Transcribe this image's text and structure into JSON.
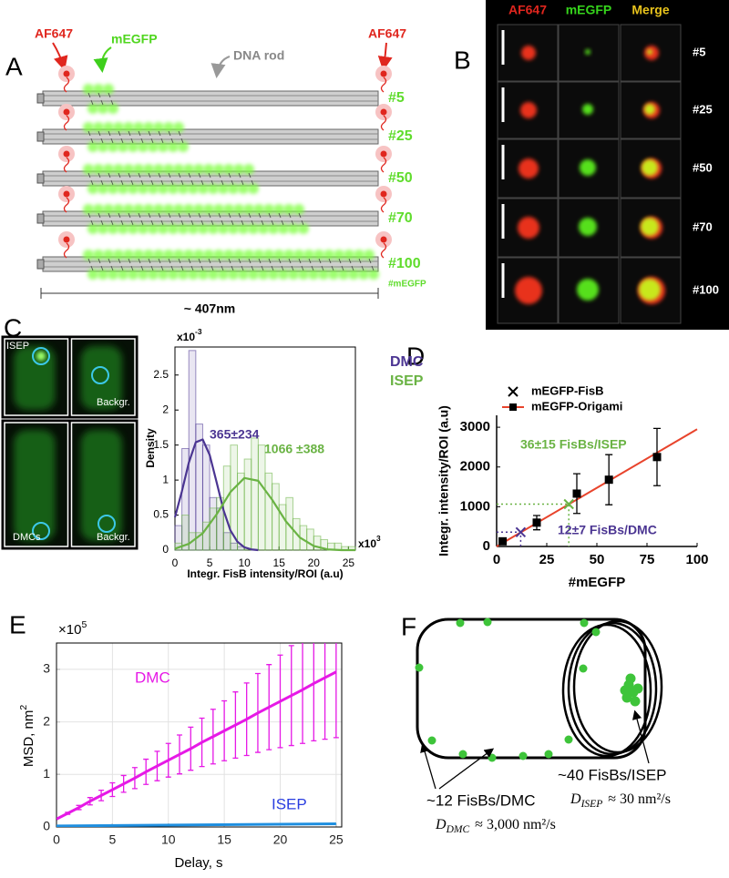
{
  "panel_labels": [
    "A",
    "B",
    "C",
    "D",
    "E",
    "F"
  ],
  "panel_a": {
    "af647_left": "AF647",
    "mEGFP": "mEGFP",
    "dna_rod": "DNA rod",
    "af647_right": "AF647",
    "rows": [
      "#5",
      "#25",
      "#50",
      "#70",
      "#100"
    ],
    "unit": "#mEGFP",
    "length": "~ 407nm"
  },
  "panel_b": {
    "columns": [
      "AF647",
      "mEGFP",
      "Merge"
    ],
    "rows": [
      "#5",
      "#25",
      "#50",
      "#70",
      "#100"
    ]
  },
  "panel_c_images": {
    "labels": [
      "ISEP",
      "Backgr.",
      "DMCs",
      "Backgr."
    ]
  },
  "panel_f": {
    "isep_count": "~40 FisBs/ISEP",
    "isep_d": {
      "symbol": "D",
      "subscript": "ISEP",
      "value": "≈ 30 nm²/s"
    },
    "dmc_count": "~12 FisBs/DMC",
    "dmc_d": {
      "symbol": "D",
      "subscript": "DMC",
      "value": "≈ 3,000 nm²/s"
    }
  },
  "chart_data": [
    {
      "type": "histogram",
      "y_label": "Density",
      "x_label": "Integr. FisB intensity/ROI (a.u)",
      "y_multiplier": {
        "base": "x10",
        "exponent": "-3"
      },
      "x_multiplier": {
        "base": "x10",
        "exponent": "3"
      },
      "xlim": [
        0,
        26
      ],
      "ylim": [
        0,
        2.9
      ],
      "xticks": [
        0,
        5,
        10,
        15,
        20,
        25
      ],
      "yticks": [
        0,
        0.5,
        1,
        1.5,
        2,
        2.5
      ],
      "series": [
        {
          "name": "DMC",
          "color": "#4b3592",
          "bins": [
            0,
            1,
            2,
            3,
            4,
            5,
            6,
            7,
            8,
            9,
            10
          ],
          "values": [
            0.35,
            1.45,
            2.85,
            1.8,
            1.5,
            0.75,
            0.6,
            0.25,
            0.1,
            0.05
          ]
        },
        {
          "name": "ISEP",
          "color": "#6ab344",
          "bins": [
            0,
            1,
            2,
            3,
            4,
            5,
            6,
            7,
            8,
            9,
            10,
            11,
            12,
            13,
            14,
            15,
            16,
            17,
            18,
            19,
            20,
            21,
            22,
            23,
            24,
            25,
            26
          ],
          "values": [
            0.1,
            0.5,
            0.25,
            0.25,
            0.4,
            0.6,
            0.75,
            1.2,
            1.5,
            1.1,
            1.3,
            1.6,
            1.5,
            1.1,
            0.95,
            0.65,
            0.75,
            0.45,
            0.35,
            0.3,
            0.2,
            0.15,
            0.1,
            0.1,
            0.05,
            0.05
          ]
        }
      ],
      "fits": [
        {
          "color": "#4b3592",
          "label": "365±234",
          "x": [
            0,
            1,
            2,
            3,
            4,
            5,
            6,
            7,
            8,
            9,
            10,
            11,
            12
          ],
          "values": [
            0.47,
            0.84,
            1.25,
            1.54,
            1.58,
            1.36,
            0.97,
            0.57,
            0.28,
            0.12,
            0.04,
            0.01,
            0
          ]
        },
        {
          "color": "#6ab344",
          "label": "1066 ±388",
          "x": [
            0,
            2,
            4,
            6,
            8,
            10,
            12,
            14,
            16,
            18,
            20,
            22,
            24,
            26
          ],
          "values": [
            0.02,
            0.09,
            0.24,
            0.51,
            0.83,
            1.03,
            0.99,
            0.72,
            0.41,
            0.18,
            0.06,
            0.01,
            0,
            0
          ]
        }
      ]
    },
    {
      "type": "scatter",
      "y_label": "Integr. intensity/ROI (a.u)",
      "x_label": "#mEGFP",
      "xlim": [
        0,
        100
      ],
      "ylim": [
        0,
        3300
      ],
      "xticks": [
        0,
        25,
        50,
        75,
        100
      ],
      "yticks": [
        0,
        1000,
        2000,
        3000
      ],
      "legend": "upper left",
      "series": [
        {
          "name": "mEGFP-FisB",
          "marker": "x",
          "color": "#000000",
          "colors": [
            "#6ab344",
            "#4b3592"
          ],
          "x": [
            36,
            12
          ],
          "values": [
            1066,
            360
          ]
        },
        {
          "name": "mEGFP-Origami",
          "marker": "square",
          "color": "#000000",
          "line_color": "#e8442c",
          "x": [
            3,
            20,
            40,
            56,
            80
          ],
          "values": [
            130,
            600,
            1330,
            1680,
            2250
          ],
          "errors": [
            40,
            180,
            500,
            630,
            720
          ]
        }
      ],
      "fit": {
        "color": "#e8442c",
        "x": [
          0,
          100
        ],
        "values": [
          0,
          2950
        ]
      },
      "annotations": [
        {
          "text": "36±15 FisBs/ISEP",
          "color": "#6ab344"
        },
        {
          "text": "12±7 FisBs/DMC",
          "color": "#4b3592"
        }
      ]
    },
    {
      "type": "line",
      "y_label": {
        "base": "MSD, nm",
        "exponent": "2"
      },
      "x_label": "Delay, s",
      "y_multiplier": {
        "base": "×10",
        "exponent": "5"
      },
      "xlim": [
        0,
        25.5
      ],
      "ylim": [
        0,
        3.5
      ],
      "xticks": [
        0,
        5,
        10,
        15,
        20,
        25
      ],
      "yticks": [
        0,
        1,
        2,
        3
      ],
      "grid": true,
      "series": [
        {
          "name": "DMC",
          "color": "#e619e6",
          "x": [
            0,
            1,
            2,
            3,
            4,
            5,
            6,
            7,
            8,
            9,
            10,
            11,
            12,
            13,
            14,
            15,
            16,
            17,
            18,
            19,
            20,
            21,
            22,
            23,
            24,
            25
          ],
          "values": [
            0.15,
            0.26,
            0.37,
            0.49,
            0.6,
            0.71,
            0.82,
            0.93,
            1.05,
            1.16,
            1.27,
            1.38,
            1.49,
            1.61,
            1.72,
            1.83,
            1.94,
            2.05,
            2.17,
            2.28,
            2.39,
            2.5,
            2.61,
            2.73,
            2.84,
            2.95
          ],
          "errors": [
            null,
            0.02,
            0.04,
            0.07,
            0.1,
            0.13,
            0.16,
            0.2,
            0.24,
            0.28,
            0.32,
            0.37,
            0.41,
            0.46,
            0.52,
            0.57,
            0.63,
            0.69,
            0.75,
            0.81,
            0.88,
            0.95,
            1.02,
            1.09,
            1.17,
            1.25
          ]
        },
        {
          "name": "ISEP",
          "color": "#1f8fe0",
          "x": [
            0,
            25
          ],
          "values": [
            0.02,
            0.06
          ]
        }
      ]
    }
  ]
}
